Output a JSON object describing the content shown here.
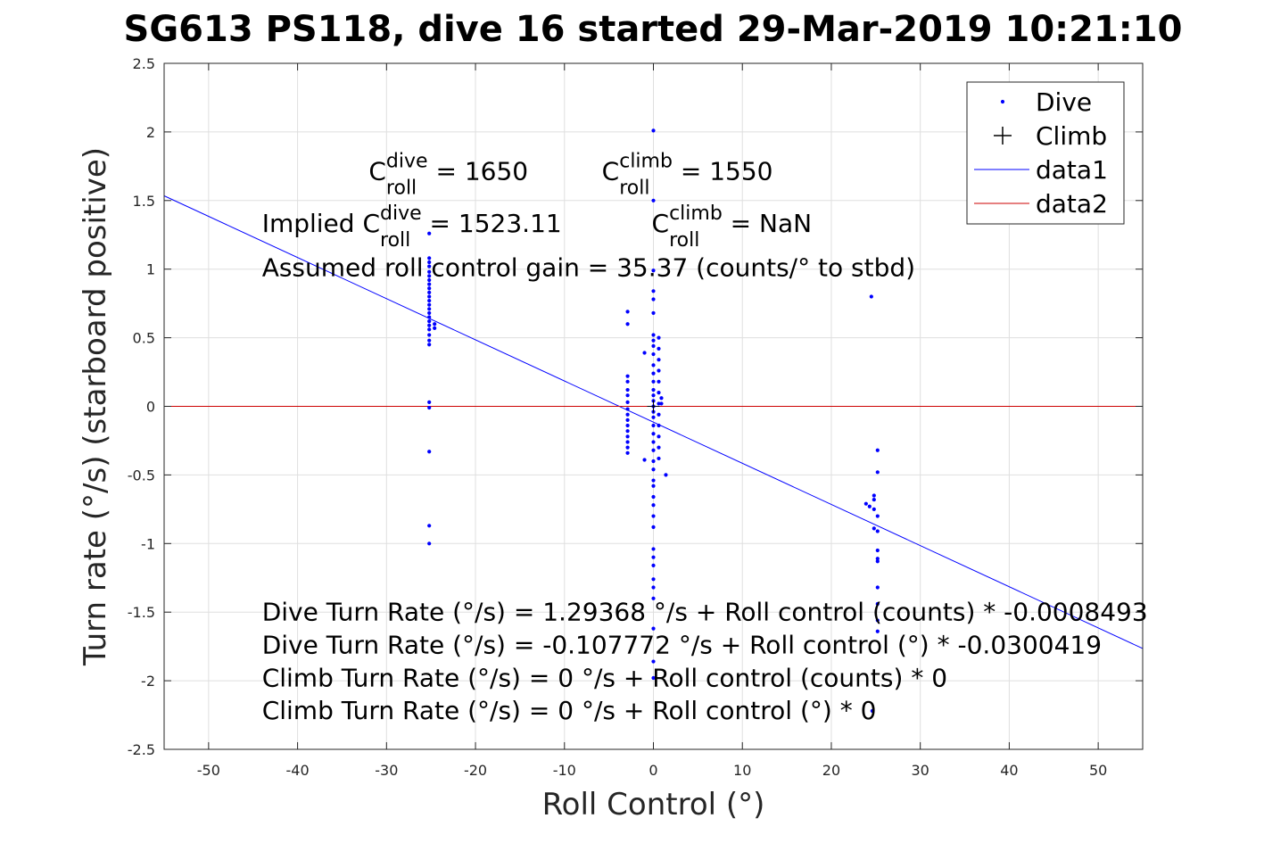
{
  "chart_data": {
    "type": "scatter",
    "title": "SG613 PS118, dive 16 started 29-Mar-2019 10:21:10",
    "xlabel": "Roll Control (°)",
    "ylabel": "Turn rate (°/s) (starboard positive)",
    "xlim": [
      -55,
      55
    ],
    "ylim": [
      -2.5,
      2.5
    ],
    "xticks": [
      -50,
      -40,
      -30,
      -20,
      -10,
      0,
      10,
      20,
      30,
      40,
      50
    ],
    "yticks": [
      -2.5,
      -2,
      -1.5,
      -1,
      -0.5,
      0,
      0.5,
      1,
      1.5,
      2,
      2.5
    ],
    "xtick_labels": [
      "-50",
      "-40",
      "-30",
      "-20",
      "-10",
      "0",
      "10",
      "20",
      "30",
      "40",
      "50"
    ],
    "ytick_labels": [
      "-2.5",
      "-2",
      "-1.5",
      "-1",
      "-0.5",
      "0",
      "0.5",
      "1",
      "1.5",
      "2",
      "2.5"
    ],
    "grid": true,
    "legend_position": "top-right",
    "legend": [
      {
        "label": "Dive",
        "marker": "dot",
        "color": "#0000ff"
      },
      {
        "label": "Climb",
        "marker": "plus",
        "color": "#000000"
      },
      {
        "label": "data1",
        "marker": "line",
        "color": "#0000ff"
      },
      {
        "label": "data2",
        "marker": "line",
        "color": "#cc0000"
      }
    ],
    "series": [
      {
        "name": "Dive",
        "color": "#0000ff",
        "points": [
          [
            -25.2,
            1.26
          ],
          [
            -25.2,
            1.08
          ],
          [
            -25.2,
            1.05
          ],
          [
            -25.2,
            1.02
          ],
          [
            -25.2,
            0.98
          ],
          [
            -25.2,
            0.95
          ],
          [
            -25.2,
            0.92
          ],
          [
            -25.2,
            0.89
          ],
          [
            -25.2,
            0.86
          ],
          [
            -25.2,
            0.83
          ],
          [
            -25.2,
            0.8
          ],
          [
            -25.2,
            0.77
          ],
          [
            -25.2,
            0.74
          ],
          [
            -25.2,
            0.71
          ],
          [
            -25.2,
            0.68
          ],
          [
            -25.2,
            0.65
          ],
          [
            -25.2,
            0.62
          ],
          [
            -25.2,
            0.59
          ],
          [
            -25.2,
            0.56
          ],
          [
            -25.2,
            0.52
          ],
          [
            -25.2,
            0.48
          ],
          [
            -25.2,
            0.45
          ],
          [
            -24.6,
            0.6
          ],
          [
            -24.6,
            0.57
          ],
          [
            -25.2,
            0.03
          ],
          [
            -25.2,
            -0.01
          ],
          [
            -25.2,
            -0.33
          ],
          [
            -25.2,
            -0.87
          ],
          [
            -25.2,
            -1.0
          ],
          [
            -2.9,
            0.69
          ],
          [
            -2.9,
            0.6
          ],
          [
            -2.9,
            0.22
          ],
          [
            -2.9,
            0.18
          ],
          [
            -2.9,
            0.12
          ],
          [
            -2.9,
            0.08
          ],
          [
            -2.9,
            0.03
          ],
          [
            -2.9,
            -0.02
          ],
          [
            -2.9,
            -0.06
          ],
          [
            -2.9,
            -0.1
          ],
          [
            -2.9,
            -0.14
          ],
          [
            -2.9,
            -0.18
          ],
          [
            -2.9,
            -0.22
          ],
          [
            -2.9,
            -0.26
          ],
          [
            -2.9,
            -0.3
          ],
          [
            -2.9,
            -0.34
          ],
          [
            -1.0,
            0.39
          ],
          [
            -1.0,
            -0.39
          ],
          [
            0.0,
            2.01
          ],
          [
            0.0,
            1.5
          ],
          [
            0.0,
            0.99
          ],
          [
            0.0,
            0.84
          ],
          [
            0.0,
            0.78
          ],
          [
            0.0,
            0.68
          ],
          [
            0.0,
            0.52
          ],
          [
            0.0,
            0.48
          ],
          [
            0.0,
            0.44
          ],
          [
            0.0,
            0.38
          ],
          [
            0.0,
            0.3
          ],
          [
            0.0,
            0.24
          ],
          [
            0.0,
            0.18
          ],
          [
            0.0,
            0.12
          ],
          [
            0.0,
            0.08
          ],
          [
            0.0,
            0.04
          ],
          [
            0.0,
            0.0
          ],
          [
            0.0,
            -0.04
          ],
          [
            0.0,
            -0.08
          ],
          [
            0.0,
            -0.14
          ],
          [
            0.0,
            -0.2
          ],
          [
            0.0,
            -0.26
          ],
          [
            0.0,
            -0.32
          ],
          [
            0.0,
            -0.4
          ],
          [
            0.0,
            -0.46
          ],
          [
            0.0,
            -0.54
          ],
          [
            0.0,
            -0.58
          ],
          [
            0.0,
            -0.66
          ],
          [
            0.0,
            -0.72
          ],
          [
            0.0,
            -0.8
          ],
          [
            0.0,
            -0.88
          ],
          [
            0.0,
            -1.04
          ],
          [
            0.0,
            -1.1
          ],
          [
            0.0,
            -1.16
          ],
          [
            0.0,
            -1.26
          ],
          [
            0.0,
            -1.32
          ],
          [
            0.0,
            -1.4
          ],
          [
            0.0,
            -1.62
          ],
          [
            0.0,
            -1.86
          ],
          [
            0.0,
            -1.98
          ],
          [
            0.6,
            0.5
          ],
          [
            0.6,
            0.42
          ],
          [
            0.6,
            0.34
          ],
          [
            0.6,
            0.26
          ],
          [
            0.6,
            0.18
          ],
          [
            0.6,
            0.1
          ],
          [
            0.6,
            0.02
          ],
          [
            0.6,
            -0.06
          ],
          [
            0.6,
            -0.14
          ],
          [
            0.6,
            -0.22
          ],
          [
            0.6,
            -0.3
          ],
          [
            0.6,
            -0.38
          ],
          [
            0.9,
            0.06
          ],
          [
            0.9,
            0.02
          ],
          [
            1.4,
            -0.5
          ],
          [
            24.5,
            0.8
          ],
          [
            23.9,
            -0.71
          ],
          [
            24.3,
            -0.73
          ],
          [
            24.8,
            -0.65
          ],
          [
            24.8,
            -0.68
          ],
          [
            24.8,
            -0.75
          ],
          [
            24.8,
            -0.89
          ],
          [
            25.2,
            -0.32
          ],
          [
            25.2,
            -0.48
          ],
          [
            25.2,
            -0.8
          ],
          [
            25.2,
            -0.91
          ],
          [
            25.2,
            -1.05
          ],
          [
            25.2,
            -1.11
          ],
          [
            25.2,
            -1.13
          ],
          [
            25.2,
            -1.32
          ],
          [
            25.2,
            -1.44
          ],
          [
            25.2,
            -1.56
          ],
          [
            25.2,
            -1.64
          ],
          [
            24.6,
            -2.22
          ]
        ]
      },
      {
        "name": "Climb",
        "color": "#000000",
        "points": [
          [
            0.0,
            0.0
          ]
        ]
      },
      {
        "name": "data1",
        "color": "#0000ff",
        "line": [
          [
            -55,
            1.5345
          ],
          [
            55,
            -1.765
          ]
        ]
      },
      {
        "name": "data2",
        "color": "#cc0000",
        "line": [
          [
            -55,
            0
          ],
          [
            55,
            0
          ]
        ]
      }
    ],
    "annotations": [
      {
        "id": "cdive",
        "base": "C",
        "sup": "dive",
        "sub": "roll",
        "suffix": " = 1650",
        "x": -32,
        "y": 1.65
      },
      {
        "id": "cclimb",
        "base": "C",
        "sup": "climb",
        "sub": "roll",
        "suffix": " = 1550",
        "x": -5.8,
        "y": 1.65
      },
      {
        "id": "implied-dive",
        "prefix": "Implied ",
        "base": "C",
        "sup": "dive",
        "sub": "roll",
        "suffix": " = 1523.11",
        "x": -44,
        "y": 1.27
      },
      {
        "id": "implied-climb",
        "base": "C",
        "sup": "climb",
        "sub": "roll",
        "suffix": " = NaN",
        "x": -0.2,
        "y": 1.27
      },
      {
        "id": "gain",
        "text": "Assumed roll control gain = 35.37 (counts/° to stbd)",
        "x": -44,
        "y": 0.95
      },
      {
        "id": "eq1",
        "text": "Dive Turn Rate (°/s) = 1.29368 °/s + Roll control (counts) * -0.0008493",
        "x": -44,
        "y": -1.56
      },
      {
        "id": "eq2",
        "text": "Dive Turn Rate (°/s) = -0.107772 °/s + Roll control (°) * -0.0300419",
        "x": -44,
        "y": -1.8
      },
      {
        "id": "eq3",
        "text": "Climb Turn Rate (°/s) = 0 °/s + Roll control (counts) * 0",
        "x": -44,
        "y": -2.04
      },
      {
        "id": "eq4",
        "text": "Climb Turn Rate (°/s) = 0 °/s + Roll control (°) * 0",
        "x": -44,
        "y": -2.28
      }
    ]
  }
}
